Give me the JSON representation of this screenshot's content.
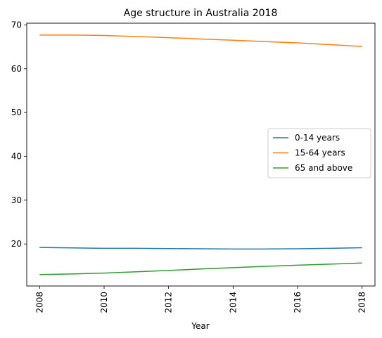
{
  "chart_data": {
    "type": "line",
    "title": "Age structure in Australia 2018",
    "xlabel": "Year",
    "ylabel": "",
    "x": [
      2008,
      2009,
      2010,
      2011,
      2012,
      2013,
      2014,
      2015,
      2016,
      2017,
      2018
    ],
    "xticks": [
      "2008",
      "2010",
      "2012",
      "2014",
      "2016",
      "2018"
    ],
    "yticks": [
      "20",
      "30",
      "40",
      "50",
      "60",
      "70"
    ],
    "xlim": [
      2007.6,
      2018.4
    ],
    "ylim": [
      10.4,
      70.4
    ],
    "grid": false,
    "legend": "center-right",
    "series": [
      {
        "name": "0-14 years",
        "color": "#1f77b4",
        "values": [
          19.2,
          19.1,
          19.0,
          19.0,
          18.95,
          18.9,
          18.85,
          18.85,
          18.9,
          19.0,
          19.15
        ]
      },
      {
        "name": "15-64 years",
        "color": "#ff7f0e",
        "values": [
          67.7,
          67.7,
          67.6,
          67.35,
          67.1,
          66.8,
          66.5,
          66.2,
          65.9,
          65.5,
          65.1
        ]
      },
      {
        "name": "65 and above",
        "color": "#2ca02c",
        "values": [
          13.0,
          13.15,
          13.35,
          13.65,
          13.95,
          14.3,
          14.6,
          14.9,
          15.15,
          15.4,
          15.65
        ]
      }
    ]
  }
}
